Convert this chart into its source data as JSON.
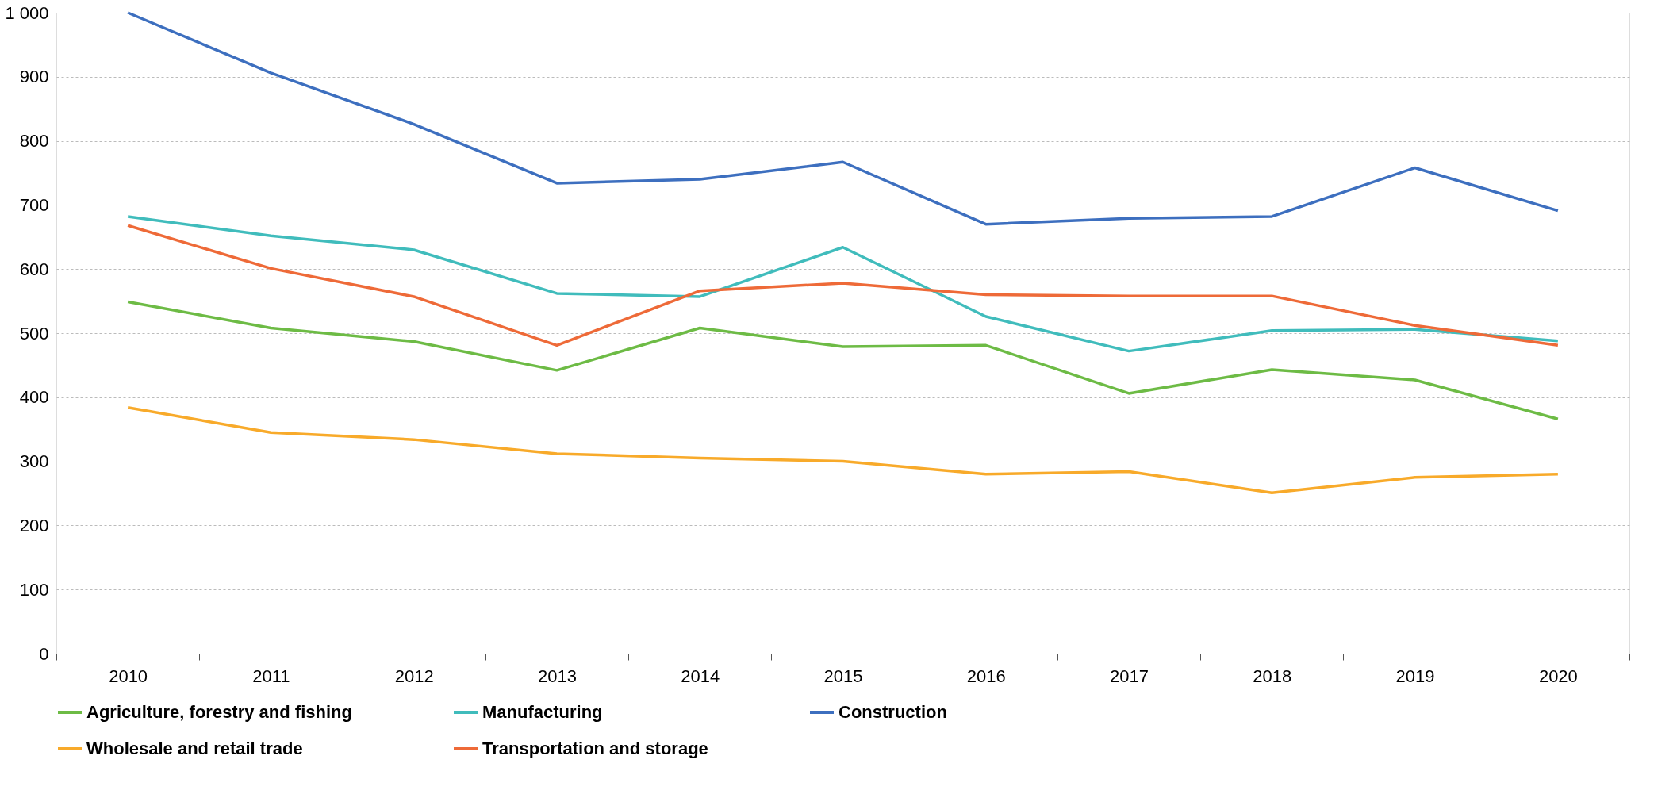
{
  "chart_data": {
    "type": "line",
    "categories": [
      "2010",
      "2011",
      "2012",
      "2013",
      "2014",
      "2015",
      "2016",
      "2017",
      "2018",
      "2019",
      "2020"
    ],
    "series": [
      {
        "name": "Agriculture, forestry and fishing",
        "color": "#6dbb45",
        "values": [
          549,
          508,
          487,
          442,
          508,
          479,
          481,
          406,
          443,
          427,
          366
        ]
      },
      {
        "name": "Manufacturing",
        "color": "#40bcbc",
        "values": [
          682,
          652,
          630,
          562,
          557,
          634,
          526,
          472,
          504,
          506,
          488
        ]
      },
      {
        "name": "Construction",
        "color": "#3d6fbf",
        "values": [
          1000,
          906,
          826,
          734,
          740,
          767,
          670,
          679,
          682,
          758,
          691
        ]
      },
      {
        "name": "Wholesale and retail trade",
        "color": "#f8aa2a",
        "values": [
          384,
          345,
          334,
          312,
          305,
          300,
          280,
          284,
          251,
          275,
          280
        ]
      },
      {
        "name": "Transportation and storage",
        "color": "#ee6a38",
        "values": [
          668,
          601,
          557,
          481,
          566,
          578,
          560,
          558,
          558,
          512,
          481
        ]
      }
    ],
    "ylim": [
      0,
      1000
    ],
    "yticks": [
      0,
      100,
      200,
      300,
      400,
      500,
      600,
      700,
      800,
      900,
      {
        "value": 1000,
        "label": "1 000"
      }
    ],
    "grid": "y",
    "legend": "bottom",
    "marker": "none",
    "line_style": "solid"
  }
}
